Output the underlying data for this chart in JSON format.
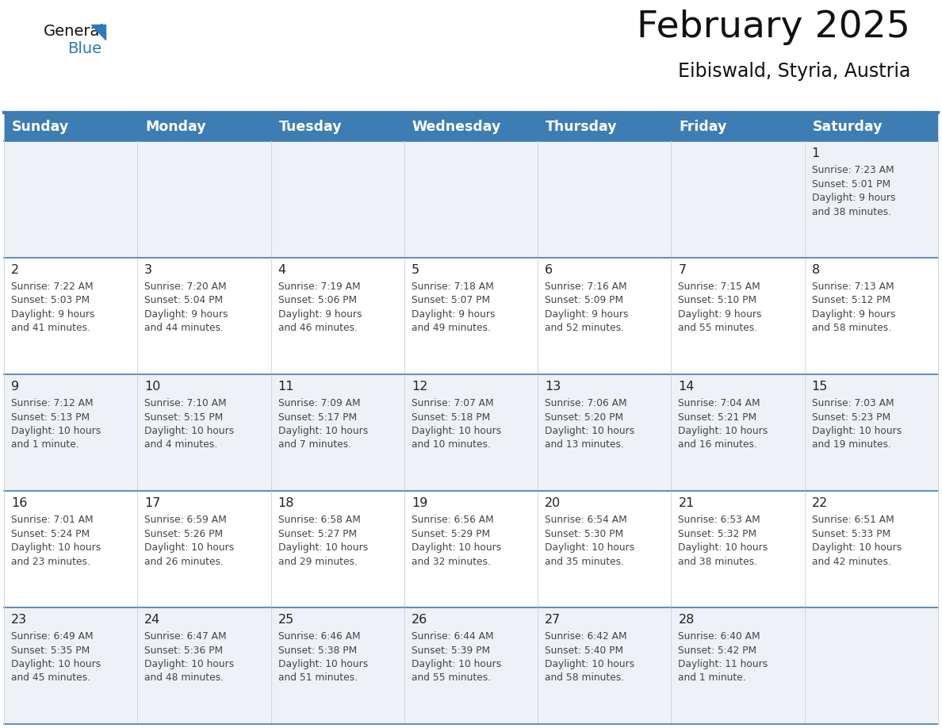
{
  "title": "February 2025",
  "subtitle": "Eibiswald, Styria, Austria",
  "header_bg": "#3d7db3",
  "header_text_color": "#ffffff",
  "cell_bg_light": "#eef2f7",
  "cell_bg_white": "#ffffff",
  "day_headers": [
    "Sunday",
    "Monday",
    "Tuesday",
    "Wednesday",
    "Thursday",
    "Friday",
    "Saturday"
  ],
  "calendar": [
    [
      null,
      null,
      null,
      null,
      null,
      null,
      {
        "day": 1,
        "sunrise": "7:23 AM",
        "sunset": "5:01 PM",
        "daylight": "9 hours\nand 38 minutes."
      }
    ],
    [
      {
        "day": 2,
        "sunrise": "7:22 AM",
        "sunset": "5:03 PM",
        "daylight": "9 hours\nand 41 minutes."
      },
      {
        "day": 3,
        "sunrise": "7:20 AM",
        "sunset": "5:04 PM",
        "daylight": "9 hours\nand 44 minutes."
      },
      {
        "day": 4,
        "sunrise": "7:19 AM",
        "sunset": "5:06 PM",
        "daylight": "9 hours\nand 46 minutes."
      },
      {
        "day": 5,
        "sunrise": "7:18 AM",
        "sunset": "5:07 PM",
        "daylight": "9 hours\nand 49 minutes."
      },
      {
        "day": 6,
        "sunrise": "7:16 AM",
        "sunset": "5:09 PM",
        "daylight": "9 hours\nand 52 minutes."
      },
      {
        "day": 7,
        "sunrise": "7:15 AM",
        "sunset": "5:10 PM",
        "daylight": "9 hours\nand 55 minutes."
      },
      {
        "day": 8,
        "sunrise": "7:13 AM",
        "sunset": "5:12 PM",
        "daylight": "9 hours\nand 58 minutes."
      }
    ],
    [
      {
        "day": 9,
        "sunrise": "7:12 AM",
        "sunset": "5:13 PM",
        "daylight": "10 hours\nand 1 minute."
      },
      {
        "day": 10,
        "sunrise": "7:10 AM",
        "sunset": "5:15 PM",
        "daylight": "10 hours\nand 4 minutes."
      },
      {
        "day": 11,
        "sunrise": "7:09 AM",
        "sunset": "5:17 PM",
        "daylight": "10 hours\nand 7 minutes."
      },
      {
        "day": 12,
        "sunrise": "7:07 AM",
        "sunset": "5:18 PM",
        "daylight": "10 hours\nand 10 minutes."
      },
      {
        "day": 13,
        "sunrise": "7:06 AM",
        "sunset": "5:20 PM",
        "daylight": "10 hours\nand 13 minutes."
      },
      {
        "day": 14,
        "sunrise": "7:04 AM",
        "sunset": "5:21 PM",
        "daylight": "10 hours\nand 16 minutes."
      },
      {
        "day": 15,
        "sunrise": "7:03 AM",
        "sunset": "5:23 PM",
        "daylight": "10 hours\nand 19 minutes."
      }
    ],
    [
      {
        "day": 16,
        "sunrise": "7:01 AM",
        "sunset": "5:24 PM",
        "daylight": "10 hours\nand 23 minutes."
      },
      {
        "day": 17,
        "sunrise": "6:59 AM",
        "sunset": "5:26 PM",
        "daylight": "10 hours\nand 26 minutes."
      },
      {
        "day": 18,
        "sunrise": "6:58 AM",
        "sunset": "5:27 PM",
        "daylight": "10 hours\nand 29 minutes."
      },
      {
        "day": 19,
        "sunrise": "6:56 AM",
        "sunset": "5:29 PM",
        "daylight": "10 hours\nand 32 minutes."
      },
      {
        "day": 20,
        "sunrise": "6:54 AM",
        "sunset": "5:30 PM",
        "daylight": "10 hours\nand 35 minutes."
      },
      {
        "day": 21,
        "sunrise": "6:53 AM",
        "sunset": "5:32 PM",
        "daylight": "10 hours\nand 38 minutes."
      },
      {
        "day": 22,
        "sunrise": "6:51 AM",
        "sunset": "5:33 PM",
        "daylight": "10 hours\nand 42 minutes."
      }
    ],
    [
      {
        "day": 23,
        "sunrise": "6:49 AM",
        "sunset": "5:35 PM",
        "daylight": "10 hours\nand 45 minutes."
      },
      {
        "day": 24,
        "sunrise": "6:47 AM",
        "sunset": "5:36 PM",
        "daylight": "10 hours\nand 48 minutes."
      },
      {
        "day": 25,
        "sunrise": "6:46 AM",
        "sunset": "5:38 PM",
        "daylight": "10 hours\nand 51 minutes."
      },
      {
        "day": 26,
        "sunrise": "6:44 AM",
        "sunset": "5:39 PM",
        "daylight": "10 hours\nand 55 minutes."
      },
      {
        "day": 27,
        "sunrise": "6:42 AM",
        "sunset": "5:40 PM",
        "daylight": "10 hours\nand 58 minutes."
      },
      {
        "day": 28,
        "sunrise": "6:40 AM",
        "sunset": "5:42 PM",
        "daylight": "11 hours\nand 1 minute."
      },
      null
    ]
  ],
  "logo_text1": "General",
  "logo_text2": "Blue",
  "logo_text1_color": "#111111",
  "logo_text2_color": "#2a7bbf",
  "triangle_color": "#2a7bbf",
  "row_divider_color": "#3d7db3",
  "col_divider_color": "#c8d0d8",
  "day_number_color": "#222222",
  "cell_text_color": "#444444",
  "title_color": "#111111",
  "subtitle_color": "#111111"
}
